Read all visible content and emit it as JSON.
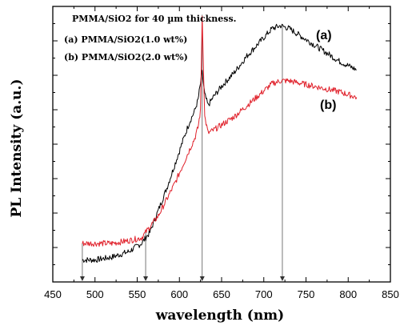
{
  "chart_data": {
    "type": "line",
    "title": "",
    "xlabel": "wavelength (nm)",
    "ylabel": "PL Intensity (a.u.)",
    "xlim": [
      450,
      850
    ],
    "ylim": [
      0,
      1
    ],
    "x_ticks": [
      "450",
      "500",
      "550",
      "600",
      "650",
      "700",
      "750",
      "800",
      "850"
    ],
    "y_tick_labels_shown": false,
    "annotations": [
      "PMMA/SiO2 for 40 µm thickness.",
      "(a) PMMA/SiO2(1.0 wt%)",
      "(b) PMMA/SiO2(2.0 wt%)"
    ],
    "markers_x": [
      485,
      560,
      627,
      722
    ],
    "series": [
      {
        "name": "(a)",
        "color": "#000000",
        "x": [
          485,
          500,
          520,
          540,
          555,
          565,
          575,
          585,
          595,
          605,
          612,
          618,
          622,
          625,
          627,
          630,
          634,
          640,
          650,
          665,
          680,
          695,
          710,
          720,
          730,
          745,
          760,
          775,
          790,
          810
        ],
        "y": [
          0.08,
          0.08,
          0.09,
          0.11,
          0.14,
          0.18,
          0.26,
          0.34,
          0.43,
          0.52,
          0.58,
          0.62,
          0.66,
          0.72,
          0.76,
          0.68,
          0.64,
          0.67,
          0.71,
          0.76,
          0.82,
          0.87,
          0.92,
          0.93,
          0.92,
          0.89,
          0.86,
          0.83,
          0.8,
          0.77
        ]
      },
      {
        "name": "(b)",
        "color": "#e0202a",
        "x": [
          485,
          500,
          520,
          540,
          555,
          565,
          575,
          585,
          595,
          605,
          612,
          618,
          622,
          625,
          627,
          630,
          634,
          640,
          650,
          665,
          680,
          695,
          710,
          720,
          730,
          745,
          760,
          775,
          790,
          810
        ],
        "y": [
          0.14,
          0.14,
          0.14,
          0.15,
          0.16,
          0.2,
          0.24,
          0.3,
          0.36,
          0.43,
          0.48,
          0.52,
          0.56,
          0.62,
          0.97,
          0.6,
          0.54,
          0.55,
          0.57,
          0.6,
          0.64,
          0.68,
          0.72,
          0.73,
          0.73,
          0.72,
          0.71,
          0.7,
          0.69,
          0.67
        ]
      }
    ]
  }
}
